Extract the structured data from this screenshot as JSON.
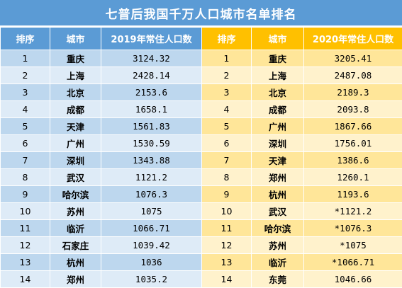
{
  "title": "七普后我国千万人口城市名单排名",
  "headers": [
    "排序",
    "城市",
    "2019年常住人口数",
    "排序",
    "城市",
    "2020年常住人口数"
  ],
  "rows": [
    {
      "r19": "1",
      "c19": "重庆",
      "p19": "3124.32",
      "r20": "1",
      "c20": "重庆",
      "p20": "3205.41"
    },
    {
      "r19": "2",
      "c19": "上海",
      "p19": "2428.14",
      "r20": "2",
      "c20": "上海",
      "p20": "2487.08"
    },
    {
      "r19": "3",
      "c19": "北京",
      "p19": "2153.6",
      "r20": "3",
      "c20": "北京",
      "p20": "2189.3"
    },
    {
      "r19": "4",
      "c19": "成都",
      "p19": "1658.1",
      "r20": "4",
      "c20": "成都",
      "p20": "2093.8"
    },
    {
      "r19": "5",
      "c19": "天津",
      "p19": "1561.83",
      "r20": "5",
      "c20": "广州",
      "p20": "1867.66"
    },
    {
      "r19": "6",
      "c19": "广州",
      "p19": "1530.59",
      "r20": "6",
      "c20": "深圳",
      "p20": "1756.01"
    },
    {
      "r19": "7",
      "c19": "深圳",
      "p19": "1343.88",
      "r20": "7",
      "c20": "天津",
      "p20": "1386.6"
    },
    {
      "r19": "8",
      "c19": "武汉",
      "p19": "1121.2",
      "r20": "8",
      "c20": "郑州",
      "p20": "1260.1"
    },
    {
      "r19": "9",
      "c19": "哈尔滨",
      "p19": "1076.3",
      "r20": "9",
      "c20": "杭州",
      "p20": "1193.6"
    },
    {
      "r19": "10",
      "c19": "苏州",
      "p19": "1075",
      "r20": "10",
      "c20": "武汉",
      "p20": "*1121.2"
    },
    {
      "r19": "11",
      "c19": "临沂",
      "p19": "1066.71",
      "r20": "11",
      "c20": "哈尔滨",
      "p20": "*1076.3"
    },
    {
      "r19": "12",
      "c19": "石家庄",
      "p19": "1039.42",
      "r20": "12",
      "c20": "苏州",
      "p20": "*1075"
    },
    {
      "r19": "13",
      "c19": "杭州",
      "p19": "1036",
      "r20": "13",
      "c20": "临沂",
      "p20": "*1066.71"
    },
    {
      "r19": "14",
      "c19": "郑州",
      "p19": "1035.2",
      "r20": "14",
      "c20": "东莞",
      "p20": "1046.66"
    }
  ],
  "colors": {
    "header_left": "#5b9bd5",
    "header_right": "#ffc000",
    "row_left_odd": "#bdd7ee",
    "row_left_even": "#deebf7",
    "row_right_odd": "#ffe699",
    "row_right_even": "#fff2cc"
  }
}
